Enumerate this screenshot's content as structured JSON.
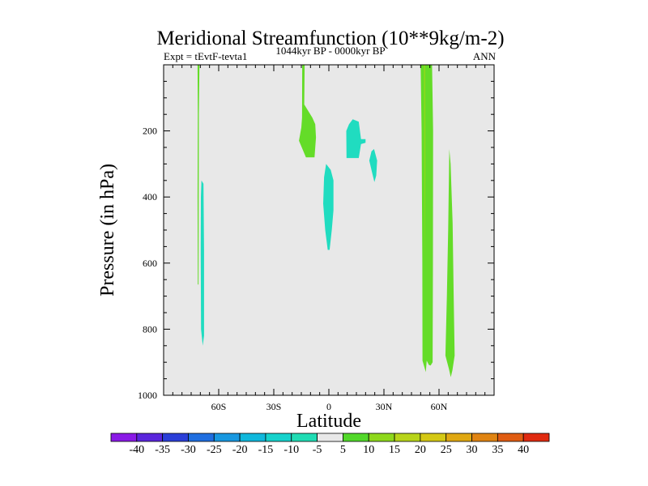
{
  "chart_data": {
    "type": "contour",
    "title": "Meridional Streamfunction (10**9kg/m-2)",
    "subtitle_left": "Expt = tEvtF-tevta1",
    "subtitle_center": "1044kyr BP - 0000kyr BP",
    "subtitle_right": "ANN",
    "xlabel": "Latitude",
    "ylabel": "Pressure (in hPa)",
    "xlim": [
      -90,
      90
    ],
    "ylim": [
      0,
      1000
    ],
    "y_inverted": true,
    "xticks": [
      {
        "value": -60,
        "label": "60S"
      },
      {
        "value": -30,
        "label": "30S"
      },
      {
        "value": 0,
        "label": "0"
      },
      {
        "value": 30,
        "label": "30N"
      },
      {
        "value": 60,
        "label": "60N"
      }
    ],
    "yticks": [
      {
        "value": 200,
        "label": "200"
      },
      {
        "value": 400,
        "label": "400"
      },
      {
        "value": 600,
        "label": "600"
      },
      {
        "value": 800,
        "label": "800"
      },
      {
        "value": 1000,
        "label": "1000"
      }
    ],
    "colorbar": {
      "labels": [
        "-40",
        "-35",
        "-30",
        "-25",
        "-20",
        "-15",
        "-10",
        "-5",
        "5",
        "10",
        "15",
        "20",
        "25",
        "30",
        "35",
        "40"
      ],
      "colors": [
        "#8a1ae6",
        "#5a26dc",
        "#2b3fd8",
        "#1f6ee0",
        "#1898e0",
        "#10b8dc",
        "#16d2cc",
        "#20dcb4",
        "#e8e8e8",
        "#52d82a",
        "#8ed81c",
        "#b8d41a",
        "#d4c814",
        "#e0a812",
        "#e08412",
        "#e05c12",
        "#e02a10"
      ]
    },
    "regions": [
      {
        "name": "sh-70s-upper-band",
        "level": "5 to 10",
        "color": "#64dc28",
        "points": [
          [
            -71.5,
            0
          ],
          [
            -70.5,
            0
          ],
          [
            -70.8,
            150
          ],
          [
            -70.9,
            400
          ],
          [
            -71,
            665
          ],
          [
            -71.4,
            665
          ],
          [
            -71.5,
            400
          ],
          [
            -71.4,
            150
          ]
        ]
      },
      {
        "name": "sh-70s-lower-band",
        "level": "-10 to -5",
        "color": "#20dcc0",
        "points": [
          [
            -69.4,
            350
          ],
          [
            -68.3,
            360
          ],
          [
            -68,
            560
          ],
          [
            -68,
            820
          ],
          [
            -68.7,
            850
          ],
          [
            -69.6,
            800
          ],
          [
            -69.8,
            560
          ],
          [
            -69.7,
            400
          ]
        ]
      },
      {
        "name": "sh-15s-upper-cell",
        "level": "5 to 10",
        "color": "#64dc28",
        "points": [
          [
            -14.5,
            0
          ],
          [
            -13.2,
            0
          ],
          [
            -13.4,
            120
          ],
          [
            -9,
            160
          ],
          [
            -7.4,
            180
          ],
          [
            -7,
            220
          ],
          [
            -7.8,
            280
          ],
          [
            -12.5,
            280
          ],
          [
            -16.3,
            230
          ],
          [
            -15,
            190
          ],
          [
            -14.6,
            160
          ]
        ]
      },
      {
        "name": "eq-mid-cell",
        "level": "-10 to -5",
        "color": "#20dcc0",
        "points": [
          [
            -1.5,
            300
          ],
          [
            1,
            318
          ],
          [
            2.5,
            350
          ],
          [
            2.5,
            440
          ],
          [
            1.6,
            500
          ],
          [
            0.4,
            560
          ],
          [
            -0.6,
            560
          ],
          [
            -2,
            500
          ],
          [
            -3.1,
            420
          ],
          [
            -2.6,
            340
          ]
        ]
      },
      {
        "name": "nh-10n-upper-cell",
        "level": "-10 to -5",
        "color": "#20dcc0",
        "points": [
          [
            13,
            165
          ],
          [
            16.3,
            172
          ],
          [
            17.5,
            225
          ],
          [
            20,
            225
          ],
          [
            20,
            236
          ],
          [
            17.5,
            240
          ],
          [
            16.3,
            282
          ],
          [
            9.6,
            282
          ],
          [
            9.5,
            200
          ],
          [
            11,
            180
          ]
        ]
      },
      {
        "name": "nh-25n-cell",
        "level": "-10 to -5",
        "color": "#20dcc0",
        "points": [
          [
            24.6,
            255
          ],
          [
            25.1,
            265
          ],
          [
            26.3,
            290
          ],
          [
            25.8,
            335
          ],
          [
            24.8,
            355
          ],
          [
            23.3,
            320
          ],
          [
            22,
            290
          ],
          [
            23.2,
            262
          ]
        ]
      },
      {
        "name": "nh-50n-outer-band",
        "level": "5 to 10",
        "color": "#64dc28",
        "points": [
          [
            50,
            0
          ],
          [
            56.2,
            0
          ],
          [
            56.8,
            200
          ],
          [
            56.7,
            600
          ],
          [
            56.5,
            900
          ],
          [
            55.4,
            910
          ],
          [
            54.5,
            908
          ],
          [
            53.3,
            895
          ],
          [
            52.8,
            930
          ],
          [
            51,
            895
          ],
          [
            50.9,
            600
          ],
          [
            50.5,
            200
          ]
        ]
      },
      {
        "name": "nh-50n-core-band",
        "level": "10 to 15",
        "color": "#8ed81c",
        "points": [
          [
            51.8,
            0
          ],
          [
            52.5,
            0
          ],
          [
            52.6,
            300
          ],
          [
            52.3,
            600
          ],
          [
            52,
            300
          ]
        ]
      },
      {
        "name": "nh-65n-band",
        "level": "5 to 10",
        "color": "#64dc28",
        "points": [
          [
            65.6,
            255
          ],
          [
            66.3,
            300
          ],
          [
            67.4,
            480
          ],
          [
            68,
            700
          ],
          [
            68.5,
            880
          ],
          [
            67.3,
            925
          ],
          [
            66.4,
            945
          ],
          [
            65.4,
            920
          ],
          [
            63.5,
            880
          ],
          [
            64.3,
            700
          ],
          [
            65,
            500
          ]
        ]
      }
    ]
  }
}
